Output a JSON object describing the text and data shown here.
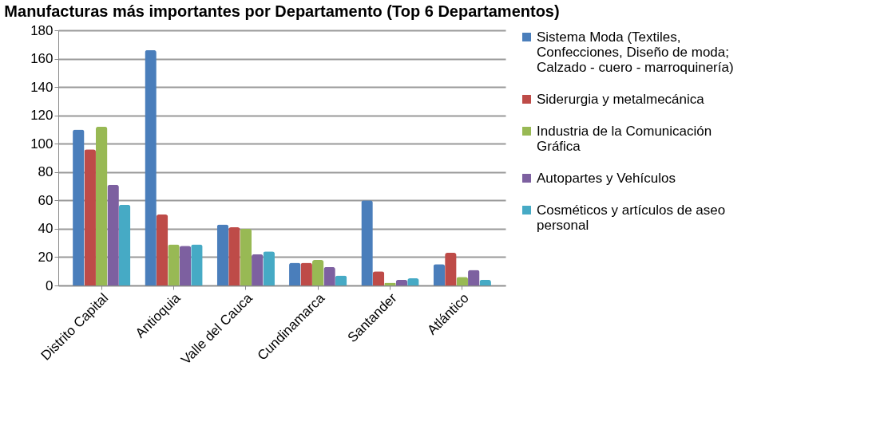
{
  "chart_data": {
    "type": "bar",
    "title": "Manufacturas más importantes por Departamento (Top 6 Departamentos)",
    "categories": [
      "Distrito Capital",
      "Antioquia",
      "Valle del Cauca",
      "Cundinamarca",
      "Santander",
      "Atlántico"
    ],
    "series": [
      {
        "name": "Sistema Moda (Textiles, Confecciones, Diseño de moda; Calzado - cuero - marroquinería)",
        "color": "#4a7ebb",
        "values": [
          110,
          166,
          43,
          16,
          60,
          15
        ]
      },
      {
        "name": "Siderurgia y metalmecánica",
        "color": "#be4b48",
        "values": [
          96,
          50,
          41,
          16,
          10,
          23
        ]
      },
      {
        "name": "Industria de la Comunicación Gráfica",
        "color": "#98b954",
        "values": [
          112,
          29,
          40,
          18,
          2,
          6
        ]
      },
      {
        "name": "Autopartes y Vehículos",
        "color": "#7d60a0",
        "values": [
          71,
          28,
          22,
          13,
          4,
          11
        ]
      },
      {
        "name": "Cosméticos y artículos de aseo personal",
        "color": "#46aac5",
        "values": [
          57,
          29,
          24,
          7,
          5,
          4
        ]
      }
    ],
    "ylim": [
      0,
      180
    ],
    "yticks": [
      0,
      20,
      40,
      60,
      80,
      100,
      120,
      140,
      160,
      180
    ],
    "grid": "y",
    "legend": "right"
  }
}
